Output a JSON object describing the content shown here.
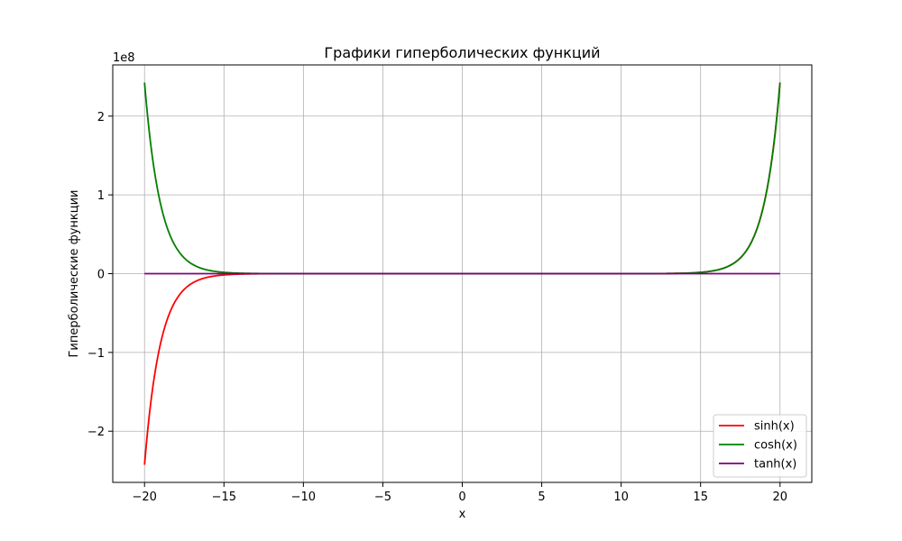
{
  "chart_data": {
    "type": "line",
    "title": "Графики гиперболических функций",
    "xlabel": "x",
    "ylabel": "Гиперболические функции",
    "y_scale_label": "1e8",
    "y_scale_factor": 100000000,
    "xlim": [
      -22,
      22
    ],
    "ylim": [
      -2.65,
      2.65
    ],
    "x_ticks": [
      -20,
      -15,
      -10,
      -5,
      0,
      5,
      10,
      15,
      20
    ],
    "x_tick_labels": [
      "−20",
      "−15",
      "−10",
      "−5",
      "0",
      "5",
      "10",
      "15",
      "20"
    ],
    "y_ticks": [
      -2,
      -1,
      0,
      1,
      2
    ],
    "y_tick_labels": [
      "−2",
      "−1",
      "0",
      "1",
      "2"
    ],
    "grid": true,
    "legend_position": "lower-right",
    "x_range": [
      -20,
      20
    ],
    "series": [
      {
        "name": "sinh(x)",
        "function": "sinh",
        "color": "#ff0000"
      },
      {
        "name": "cosh(x)",
        "function": "cosh",
        "color": "#008000"
      },
      {
        "name": "tanh(x)",
        "function": "tanh",
        "color": "#800080"
      }
    ]
  }
}
